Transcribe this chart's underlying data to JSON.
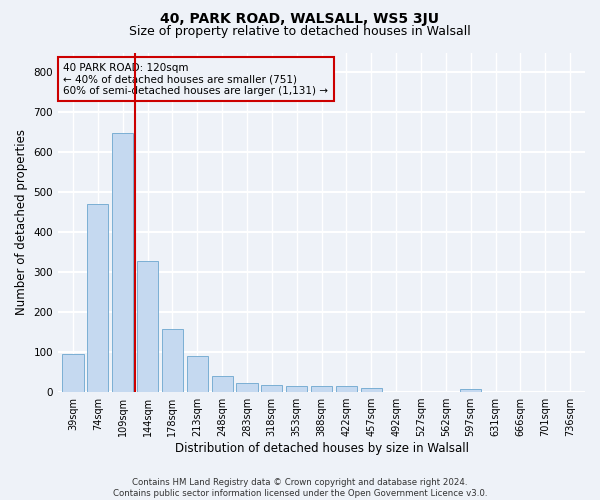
{
  "title": "40, PARK ROAD, WALSALL, WS5 3JU",
  "subtitle": "Size of property relative to detached houses in Walsall",
  "xlabel": "Distribution of detached houses by size in Walsall",
  "ylabel": "Number of detached properties",
  "categories": [
    "39sqm",
    "74sqm",
    "109sqm",
    "144sqm",
    "178sqm",
    "213sqm",
    "248sqm",
    "283sqm",
    "318sqm",
    "353sqm",
    "388sqm",
    "422sqm",
    "457sqm",
    "492sqm",
    "527sqm",
    "562sqm",
    "597sqm",
    "631sqm",
    "666sqm",
    "701sqm",
    "736sqm"
  ],
  "values": [
    95,
    470,
    648,
    327,
    158,
    90,
    40,
    23,
    17,
    16,
    14,
    14,
    9,
    0,
    0,
    0,
    8,
    0,
    0,
    0,
    0
  ],
  "bar_color": "#c5d9f0",
  "bar_edge_color": "#7bafd4",
  "vline_x": 2.5,
  "vline_color": "#cc0000",
  "annotation_text": "40 PARK ROAD: 120sqm\n← 40% of detached houses are smaller (751)\n60% of semi-detached houses are larger (1,131) →",
  "annotation_box_color": "#cc0000",
  "footer_line1": "Contains HM Land Registry data © Crown copyright and database right 2024.",
  "footer_line2": "Contains public sector information licensed under the Open Government Licence v3.0.",
  "ylim": [
    0,
    850
  ],
  "yticks": [
    0,
    100,
    200,
    300,
    400,
    500,
    600,
    700,
    800
  ],
  "bg_color": "#eef2f8",
  "grid_color": "#ffffff",
  "title_fontsize": 10,
  "subtitle_fontsize": 9,
  "axis_label_fontsize": 8.5,
  "tick_fontsize": 7
}
